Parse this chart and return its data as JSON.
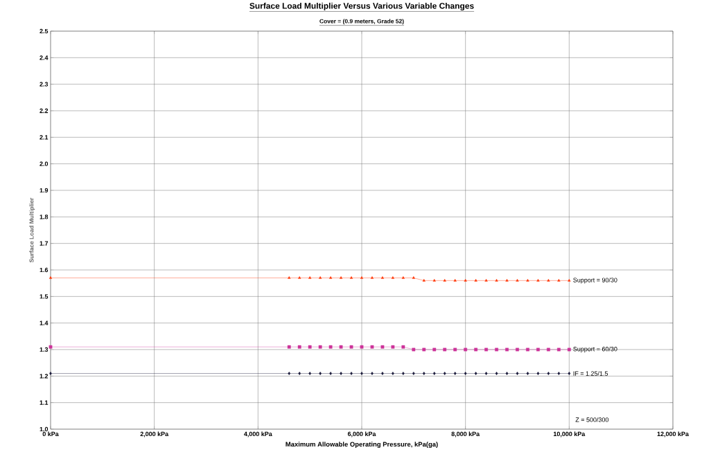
{
  "chart_data": {
    "type": "line",
    "title": "Surface Load Multiplier Versus Various Variable Changes",
    "subtitle": "Cover = (0.9 meters, Grade 52)",
    "xlabel": "Maximum Allowable Operating Pressure,  kPa(ga)",
    "ylabel": "Surface Load Multiplier",
    "x": [
      0,
      4600,
      4800,
      5000,
      5200,
      5400,
      5600,
      5800,
      6000,
      6200,
      6400,
      6600,
      6800,
      7000,
      7200,
      7400,
      7600,
      7800,
      8000,
      8200,
      8400,
      8600,
      8800,
      9000,
      9200,
      9400,
      9600,
      9800,
      10000
    ],
    "series": [
      {
        "name": "Support = 90/30",
        "color": "#ff3300",
        "marker": "triangle",
        "values": [
          1.57,
          1.57,
          1.57,
          1.57,
          1.57,
          1.57,
          1.57,
          1.57,
          1.57,
          1.57,
          1.57,
          1.57,
          1.57,
          1.57,
          1.56,
          1.56,
          1.56,
          1.56,
          1.56,
          1.56,
          1.56,
          1.56,
          1.56,
          1.56,
          1.56,
          1.56,
          1.56,
          1.56,
          1.56
        ]
      },
      {
        "name": "Support = 60/30",
        "color": "#cc3399",
        "marker": "square",
        "values": [
          1.31,
          1.31,
          1.31,
          1.31,
          1.31,
          1.31,
          1.31,
          1.31,
          1.31,
          1.31,
          1.31,
          1.31,
          1.31,
          1.3,
          1.3,
          1.3,
          1.3,
          1.3,
          1.3,
          1.3,
          1.3,
          1.3,
          1.3,
          1.3,
          1.3,
          1.3,
          1.3,
          1.3,
          1.3
        ]
      },
      {
        "name": "IF = 1.25/1.5",
        "color": "#1a1a3a",
        "marker": "diamond",
        "values": [
          1.21,
          1.21,
          1.21,
          1.21,
          1.21,
          1.21,
          1.21,
          1.21,
          1.21,
          1.21,
          1.21,
          1.21,
          1.21,
          1.21,
          1.21,
          1.21,
          1.21,
          1.21,
          1.21,
          1.21,
          1.21,
          1.21,
          1.21,
          1.21,
          1.21,
          1.21,
          1.21,
          1.21,
          1.21
        ]
      }
    ],
    "annotations": [
      "Z = 500/300"
    ],
    "xlim": [
      0,
      12000
    ],
    "xticks": [
      {
        "value": 0,
        "label": "0 kPa"
      },
      {
        "value": 2000,
        "label": "2,000 kPa"
      },
      {
        "value": 4000,
        "label": "4,000 kPa"
      },
      {
        "value": 6000,
        "label": "6,000 kPa"
      },
      {
        "value": 8000,
        "label": "8,000 kPa"
      },
      {
        "value": 10000,
        "label": "10,000 kPa"
      },
      {
        "value": 12000,
        "label": "12,000 kPa"
      }
    ],
    "ylim": [
      1.0,
      2.5
    ],
    "yticks": [
      {
        "value": 1.0,
        "label": "1.0"
      },
      {
        "value": 1.1,
        "label": "1.1"
      },
      {
        "value": 1.2,
        "label": "1.2"
      },
      {
        "value": 1.3,
        "label": "1.3"
      },
      {
        "value": 1.4,
        "label": "1.4"
      },
      {
        "value": 1.5,
        "label": "1.5"
      },
      {
        "value": 1.6,
        "label": "1.6"
      },
      {
        "value": 1.7,
        "label": "1.7"
      },
      {
        "value": 1.8,
        "label": "1.8"
      },
      {
        "value": 1.9,
        "label": "1.9"
      },
      {
        "value": 2.0,
        "label": "2.0"
      },
      {
        "value": 2.1,
        "label": "2.1"
      },
      {
        "value": 2.2,
        "label": "2.2"
      },
      {
        "value": 2.3,
        "label": "2.3"
      },
      {
        "value": 2.4,
        "label": "2.4"
      },
      {
        "value": 2.5,
        "label": "2.5"
      }
    ],
    "grid": true,
    "line_style": "solid"
  }
}
